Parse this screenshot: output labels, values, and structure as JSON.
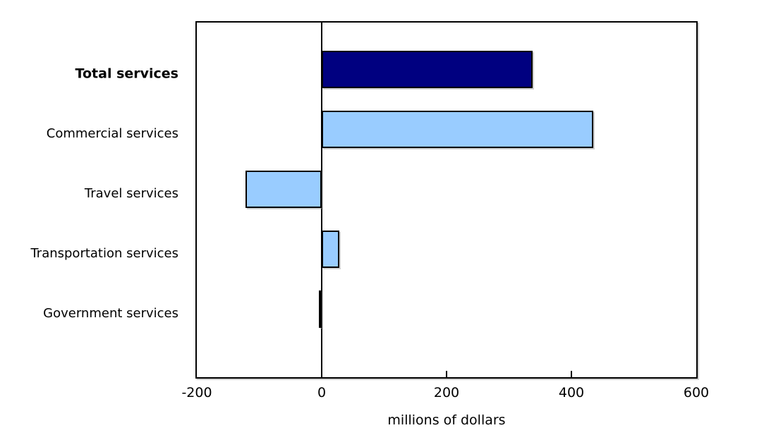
{
  "chart_data": {
    "type": "bar",
    "orientation": "horizontal",
    "title": "",
    "xlabel": "millions of dollars",
    "ylabel": "",
    "xlim": [
      -200,
      600
    ],
    "xticks": [
      -200,
      0,
      200,
      400,
      600
    ],
    "xtick_labels": [
      "-200",
      "0",
      "200",
      "400",
      "600"
    ],
    "grid": false,
    "legend": false,
    "categories": [
      "Total services",
      "Commercial services",
      "Travel services",
      "Transportation services",
      "Government services"
    ],
    "values": [
      338,
      435,
      -122,
      28,
      -4
    ],
    "bar_colors": [
      "#000080",
      "#99ccff",
      "#99ccff",
      "#99ccff",
      "#99ccff"
    ],
    "emphasized_category": "Total services",
    "colors": {
      "total_bar": "#000080",
      "component_bar": "#99ccff",
      "bar_border": "#000000",
      "axis": "#000000",
      "text": "#000000",
      "background": "#ffffff"
    }
  }
}
